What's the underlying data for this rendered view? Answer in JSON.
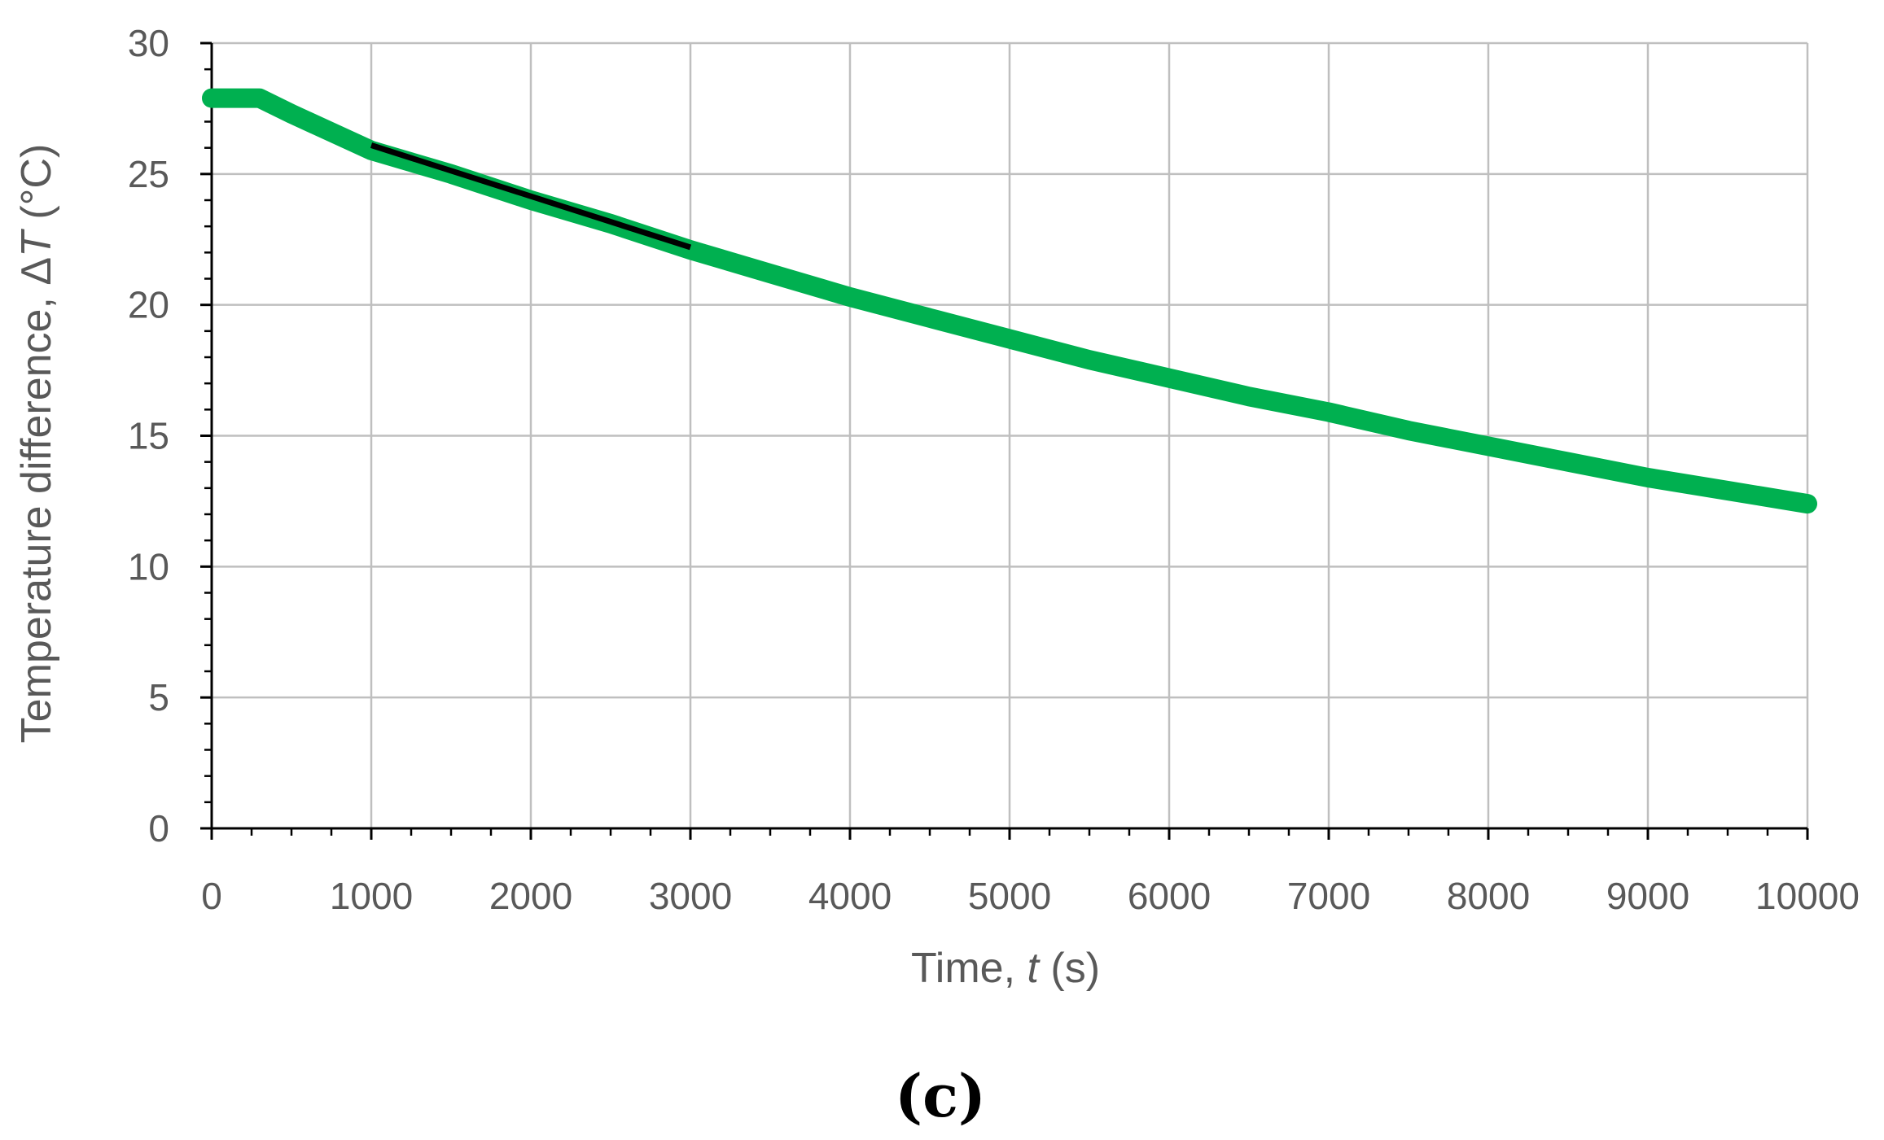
{
  "chart_data": {
    "type": "line",
    "panel_label": "(c)",
    "xlabel": {
      "prefix": "Time, ",
      "symbol": "t",
      "suffix": " (s)"
    },
    "ylabel": {
      "prefix": "Temperature difference, Δ",
      "symbol": "T",
      "suffix": " (°C)"
    },
    "xlim": [
      0,
      10000
    ],
    "ylim": [
      0,
      30
    ],
    "xticks": [
      0,
      1000,
      2000,
      3000,
      4000,
      5000,
      6000,
      7000,
      8000,
      9000,
      10000
    ],
    "yticks": [
      0,
      5,
      10,
      15,
      20,
      25,
      30
    ],
    "x_minor_step": 250,
    "y_minor_step": 1,
    "grid": true,
    "colors": {
      "series": "#00b050",
      "fit": "#000000",
      "grid": "#bfbfbf",
      "axis": "#000000",
      "text": "#595959"
    },
    "series": [
      {
        "style": "thick-line",
        "x": [
          0,
          100,
          200,
          300,
          500,
          750,
          1000,
          1500,
          2000,
          2500,
          3000,
          3500,
          4000,
          4500,
          5000,
          5500,
          6000,
          6500,
          7000,
          7500,
          8000,
          8500,
          9000,
          9500,
          10000
        ],
        "y": [
          27.9,
          27.9,
          27.9,
          27.9,
          27.3,
          26.6,
          25.9,
          25.0,
          24.0,
          23.1,
          22.1,
          21.2,
          20.3,
          19.5,
          18.7,
          17.9,
          17.2,
          16.5,
          15.9,
          15.2,
          14.6,
          14.0,
          13.4,
          12.9,
          12.4
        ]
      },
      {
        "style": "fit-line",
        "x": [
          1000,
          3000
        ],
        "y": [
          26.1,
          22.2
        ]
      }
    ]
  }
}
